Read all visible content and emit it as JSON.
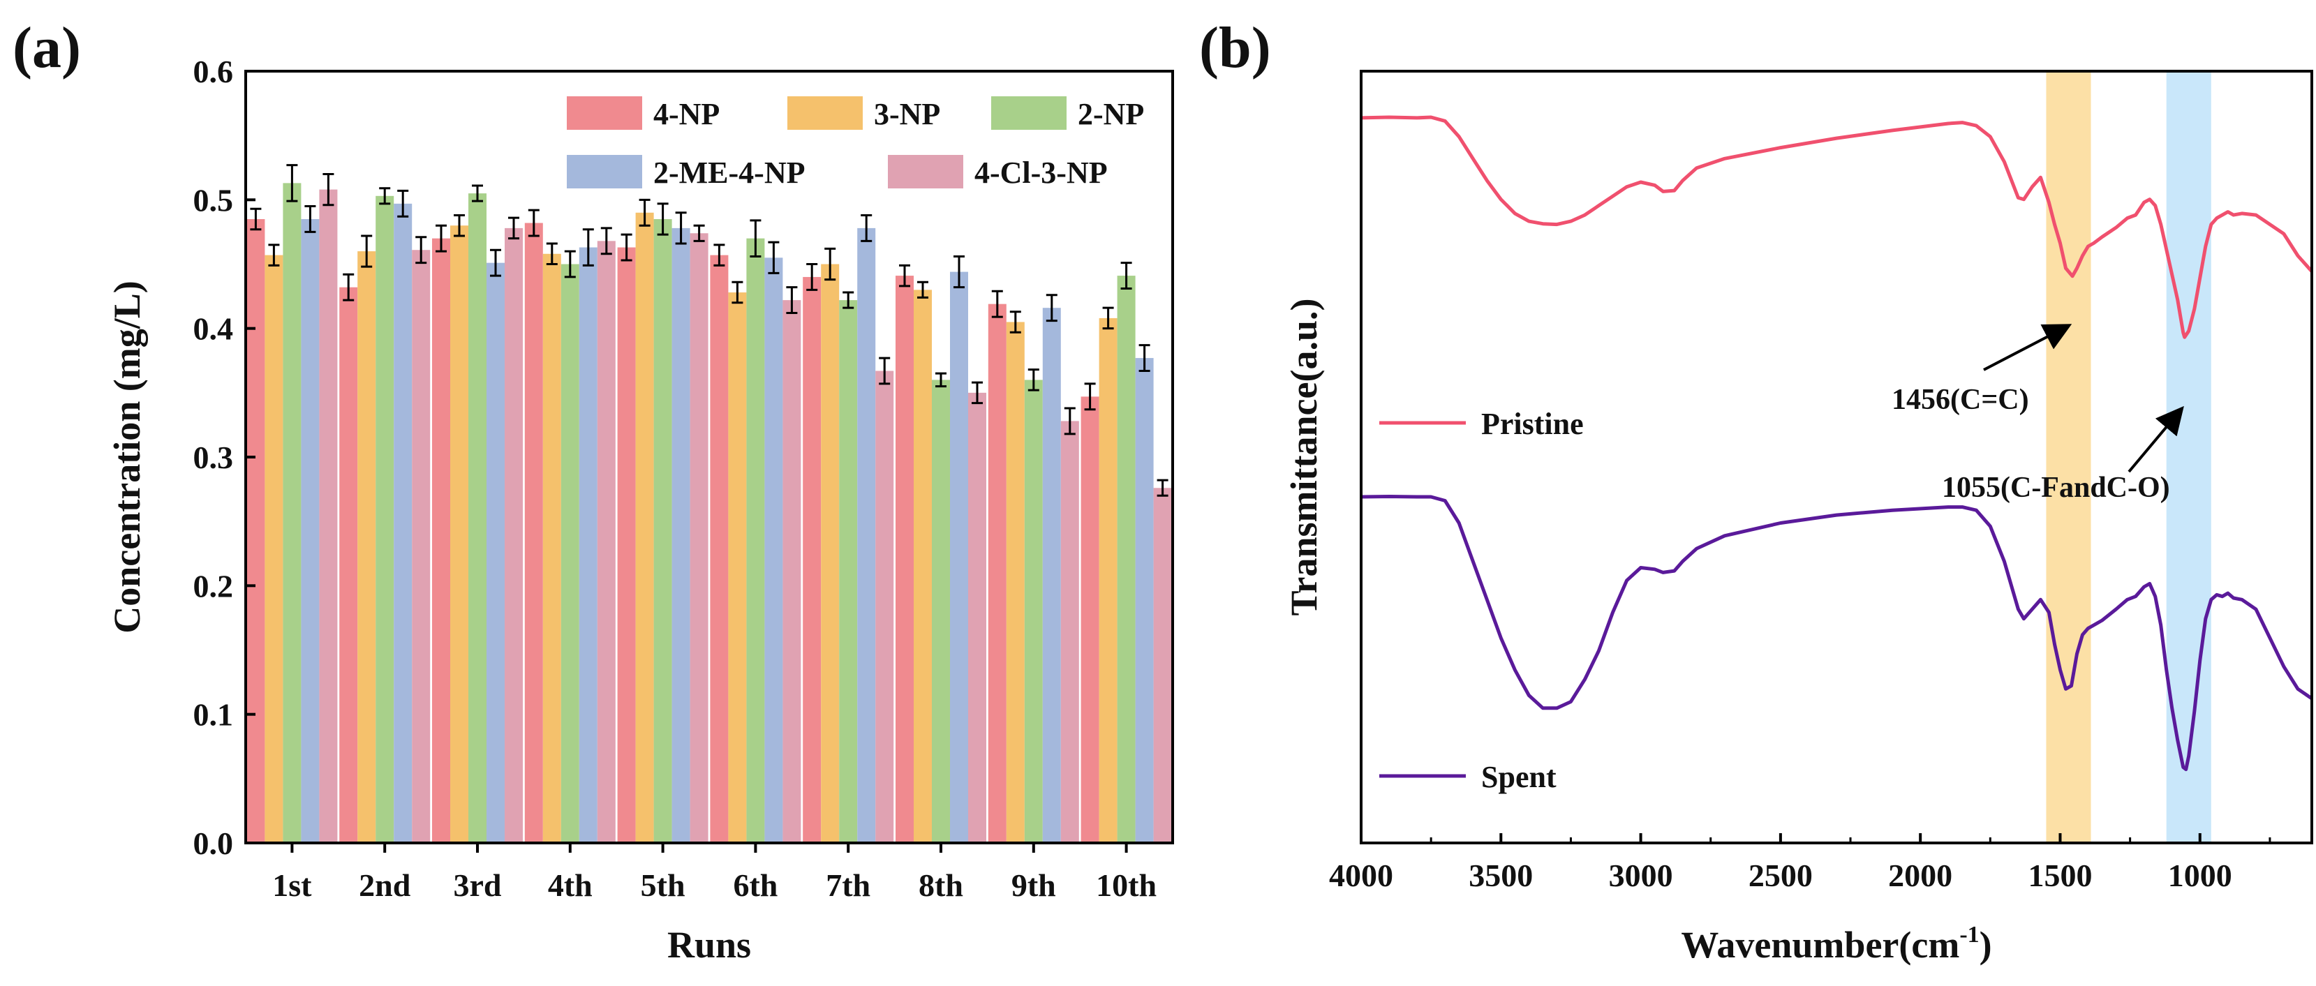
{
  "figure": {
    "panel_a_label": "(a)",
    "panel_b_label": "(b)"
  },
  "chart_data": [
    {
      "type": "bar",
      "panel": "(a)",
      "title": "",
      "xlabel": "Runs",
      "ylabel": "Concentration (mg/L)",
      "ylim": [
        0,
        0.6
      ],
      "yticks": [
        "0.0",
        "0.1",
        "0.2",
        "0.3",
        "0.4",
        "0.5",
        "0.6"
      ],
      "categories": [
        "1st",
        "2nd",
        "3rd",
        "4th",
        "5th",
        "6th",
        "7th",
        "8th",
        "9th",
        "10th"
      ],
      "legend_position": "top-right",
      "series": [
        {
          "name": "4-NP",
          "color": "#f08a8f",
          "values": [
            0.485,
            0.432,
            0.47,
            0.482,
            0.463,
            0.457,
            0.44,
            0.441,
            0.419,
            0.347
          ],
          "errors": [
            0.008,
            0.01,
            0.01,
            0.01,
            0.01,
            0.008,
            0.01,
            0.008,
            0.01,
            0.01
          ]
        },
        {
          "name": "3-NP",
          "color": "#f5c16c",
          "values": [
            0.457,
            0.46,
            0.48,
            0.458,
            0.49,
            0.428,
            0.45,
            0.43,
            0.405,
            0.408
          ],
          "errors": [
            0.008,
            0.012,
            0.008,
            0.008,
            0.01,
            0.008,
            0.012,
            0.006,
            0.008,
            0.008
          ]
        },
        {
          "name": "2-NP",
          "color": "#a8d08a",
          "values": [
            0.513,
            0.503,
            0.505,
            0.45,
            0.485,
            0.47,
            0.422,
            0.36,
            0.36,
            0.441
          ],
          "errors": [
            0.014,
            0.006,
            0.006,
            0.01,
            0.012,
            0.014,
            0.006,
            0.005,
            0.008,
            0.01
          ]
        },
        {
          "name": "2-ME-4-NP",
          "color": "#a4b8dc",
          "values": [
            0.485,
            0.497,
            0.451,
            0.463,
            0.478,
            0.455,
            0.478,
            0.444,
            0.416,
            0.377
          ],
          "errors": [
            0.01,
            0.01,
            0.01,
            0.014,
            0.012,
            0.012,
            0.01,
            0.012,
            0.01,
            0.01
          ]
        },
        {
          "name": "4-Cl-3-NP",
          "color": "#e0a2b2",
          "values": [
            0.508,
            0.461,
            0.478,
            0.468,
            0.474,
            0.422,
            0.367,
            0.35,
            0.328,
            0.276
          ],
          "errors": [
            0.012,
            0.01,
            0.008,
            0.01,
            0.006,
            0.01,
            0.01,
            0.008,
            0.01,
            0.006
          ]
        }
      ]
    },
    {
      "type": "line",
      "panel": "(b)",
      "title": "",
      "xlabel": "Wavenumber(cm",
      "xlabel_unit_sup": "-1",
      "xlabel_close": ")",
      "ylabel": "Transmittance(a.u.)",
      "xlim": [
        4000,
        600
      ],
      "xticks": [
        "4000",
        "3500",
        "3000",
        "2500",
        "2000",
        "1500",
        "1000"
      ],
      "xtick_values": [
        4000,
        3500,
        3000,
        2500,
        2000,
        1500,
        1000
      ],
      "highlight_bands": [
        {
          "from": 1550,
          "to": 1390,
          "color": "#fce0a6"
        },
        {
          "from": 1120,
          "to": 960,
          "color": "#c9e7fa"
        }
      ],
      "annotations": [
        {
          "text": "1456(C=C)",
          "x": 1456,
          "series": "Pristine"
        },
        {
          "text": "1055(C-FandC-O)",
          "x": 1055,
          "series": "Pristine"
        }
      ],
      "series": [
        {
          "name": "Pristine",
          "color": "#f0506e",
          "x": [
            4000,
            3900,
            3800,
            3750,
            3700,
            3650,
            3600,
            3550,
            3500,
            3450,
            3400,
            3350,
            3300,
            3250,
            3200,
            3150,
            3100,
            3050,
            3000,
            2950,
            2920,
            2880,
            2850,
            2800,
            2700,
            2500,
            2300,
            2100,
            1900,
            1850,
            1800,
            1750,
            1700,
            1650,
            1630,
            1600,
            1570,
            1540,
            1520,
            1500,
            1480,
            1456,
            1440,
            1420,
            1400,
            1380,
            1350,
            1300,
            1260,
            1230,
            1200,
            1180,
            1160,
            1140,
            1120,
            1100,
            1080,
            1060,
            1055,
            1040,
            1020,
            1000,
            980,
            960,
            940,
            920,
            900,
            880,
            850,
            800,
            750,
            700,
            650,
            600
          ],
          "y": [
            0.96,
            0.962,
            0.96,
            0.962,
            0.95,
            0.9,
            0.83,
            0.76,
            0.7,
            0.655,
            0.63,
            0.622,
            0.62,
            0.63,
            0.65,
            0.68,
            0.71,
            0.74,
            0.755,
            0.745,
            0.725,
            0.728,
            0.76,
            0.8,
            0.83,
            0.865,
            0.895,
            0.92,
            0.942,
            0.945,
            0.935,
            0.9,
            0.82,
            0.705,
            0.7,
            0.74,
            0.77,
            0.69,
            0.62,
            0.56,
            0.48,
            0.455,
            0.48,
            0.52,
            0.55,
            0.56,
            0.58,
            0.61,
            0.64,
            0.65,
            0.69,
            0.7,
            0.68,
            0.62,
            0.54,
            0.46,
            0.38,
            0.275,
            0.26,
            0.28,
            0.35,
            0.45,
            0.55,
            0.62,
            0.64,
            0.65,
            0.66,
            0.65,
            0.655,
            0.65,
            0.62,
            0.59,
            0.52,
            0.47
          ]
        },
        {
          "name": "Spent",
          "color": "#5a1a9a",
          "x": [
            4000,
            3900,
            3800,
            3750,
            3700,
            3650,
            3600,
            3550,
            3500,
            3450,
            3400,
            3350,
            3300,
            3250,
            3200,
            3150,
            3100,
            3050,
            3000,
            2950,
            2920,
            2880,
            2850,
            2800,
            2700,
            2500,
            2300,
            2100,
            1900,
            1850,
            1800,
            1750,
            1700,
            1650,
            1630,
            1600,
            1570,
            1540,
            1520,
            1500,
            1480,
            1460,
            1440,
            1420,
            1400,
            1380,
            1350,
            1300,
            1260,
            1230,
            1200,
            1180,
            1160,
            1140,
            1120,
            1100,
            1080,
            1060,
            1050,
            1040,
            1020,
            1000,
            980,
            960,
            940,
            920,
            900,
            880,
            850,
            800,
            750,
            700,
            650,
            600
          ],
          "y": [
            0.962,
            0.963,
            0.962,
            0.962,
            0.95,
            0.88,
            0.76,
            0.64,
            0.52,
            0.42,
            0.34,
            0.3,
            0.3,
            0.32,
            0.39,
            0.48,
            0.6,
            0.7,
            0.74,
            0.735,
            0.725,
            0.73,
            0.76,
            0.8,
            0.84,
            0.88,
            0.905,
            0.92,
            0.93,
            0.93,
            0.92,
            0.87,
            0.76,
            0.61,
            0.58,
            0.61,
            0.64,
            0.6,
            0.5,
            0.42,
            0.36,
            0.37,
            0.47,
            0.53,
            0.55,
            0.56,
            0.575,
            0.61,
            0.64,
            0.65,
            0.68,
            0.69,
            0.65,
            0.56,
            0.42,
            0.3,
            0.2,
            0.115,
            0.108,
            0.15,
            0.29,
            0.45,
            0.58,
            0.64,
            0.655,
            0.65,
            0.66,
            0.645,
            0.64,
            0.61,
            0.52,
            0.43,
            0.36,
            0.33
          ]
        }
      ]
    }
  ]
}
